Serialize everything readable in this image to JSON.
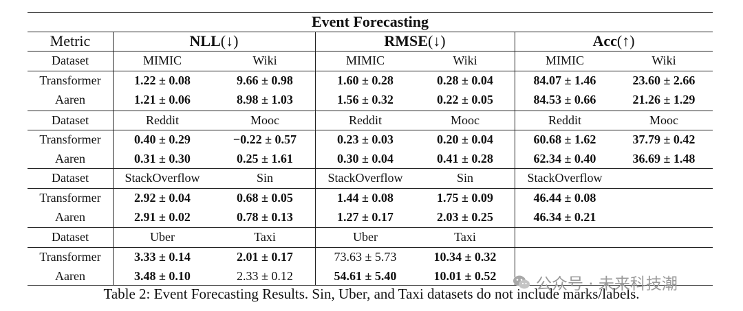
{
  "table": {
    "title": "Event Forecasting",
    "header": {
      "metric_label": "Metric",
      "nll_label": "NLL",
      "nll_dir": " (↓)",
      "rmse_label": "RMSE",
      "rmse_dir": " (↓)",
      "acc_label": "Acc",
      "acc_dir": " (↑)"
    },
    "blocks": [
      {
        "dataset_label": "Dataset",
        "ds": [
          "MIMIC",
          "Wiki",
          "MIMIC",
          "Wiki",
          "MIMIC",
          "Wiki"
        ],
        "rows": [
          {
            "name": "Transformer",
            "vals": [
              "1.22 ± 0.08",
              "9.66 ± 0.98",
              "1.60 ± 0.28",
              "0.28 ± 0.04",
              "84.07 ± 1.46",
              "23.60 ± 2.66"
            ],
            "bold": [
              true,
              true,
              true,
              true,
              true,
              true
            ]
          },
          {
            "name": "Aaren",
            "vals": [
              "1.21 ± 0.06",
              "8.98 ± 1.03",
              "1.56 ± 0.32",
              "0.22 ± 0.05",
              "84.53 ± 0.66",
              "21.26 ± 1.29"
            ],
            "bold": [
              true,
              true,
              true,
              true,
              true,
              true
            ]
          }
        ]
      },
      {
        "dataset_label": "Dataset",
        "ds": [
          "Reddit",
          "Mooc",
          "Reddit",
          "Mooc",
          "Reddit",
          "Mooc"
        ],
        "rows": [
          {
            "name": "Transformer",
            "vals": [
              "0.40 ± 0.29",
              "−0.22 ± 0.57",
              "0.23 ± 0.03",
              "0.20 ± 0.04",
              "60.68 ± 1.62",
              "37.79 ± 0.42"
            ],
            "bold": [
              true,
              true,
              true,
              true,
              true,
              true
            ]
          },
          {
            "name": "Aaren",
            "vals": [
              "0.31 ± 0.30",
              "0.25 ± 1.61",
              "0.30 ± 0.04",
              "0.41 ± 0.28",
              "62.34 ± 0.40",
              "36.69 ± 1.48"
            ],
            "bold": [
              true,
              true,
              true,
              true,
              true,
              true
            ]
          }
        ]
      },
      {
        "dataset_label": "Dataset",
        "ds": [
          "StackOverflow",
          "Sin",
          "StackOverflow",
          "Sin",
          "StackOverflow",
          ""
        ],
        "rows": [
          {
            "name": "Transformer",
            "vals": [
              "2.92 ± 0.04",
              "0.68 ± 0.05",
              "1.44 ± 0.08",
              "1.75 ± 0.09",
              "46.44 ± 0.08",
              ""
            ],
            "bold": [
              true,
              true,
              true,
              true,
              true,
              false
            ]
          },
          {
            "name": "Aaren",
            "vals": [
              "2.91 ± 0.02",
              "0.78 ± 0.13",
              "1.27 ± 0.17",
              "2.03 ± 0.25",
              "46.34 ± 0.21",
              ""
            ],
            "bold": [
              true,
              true,
              true,
              true,
              true,
              false
            ]
          }
        ]
      },
      {
        "dataset_label": "Dataset",
        "ds": [
          "Uber",
          "Taxi",
          "Uber",
          "Taxi",
          "",
          ""
        ],
        "rows": [
          {
            "name": "Transformer",
            "vals": [
              "3.33 ± 0.14",
              "2.01 ± 0.17",
              "73.63 ± 5.73",
              "10.34 ± 0.32",
              "",
              ""
            ],
            "bold": [
              true,
              true,
              false,
              true,
              false,
              false
            ]
          },
          {
            "name": "Aaren",
            "vals": [
              "3.48 ± 0.10",
              "2.33 ± 0.12",
              "54.61 ± 5.40",
              "10.01 ± 0.52",
              "",
              ""
            ],
            "bold": [
              true,
              false,
              true,
              true,
              false,
              false
            ]
          }
        ]
      }
    ]
  },
  "caption": "Table 2: Event Forecasting Results. Sin, Uber, and Taxi datasets do not include marks/labels.",
  "watermark": {
    "text": "公众号 · 未来科技潮",
    "icon": "wechat-icon"
  }
}
